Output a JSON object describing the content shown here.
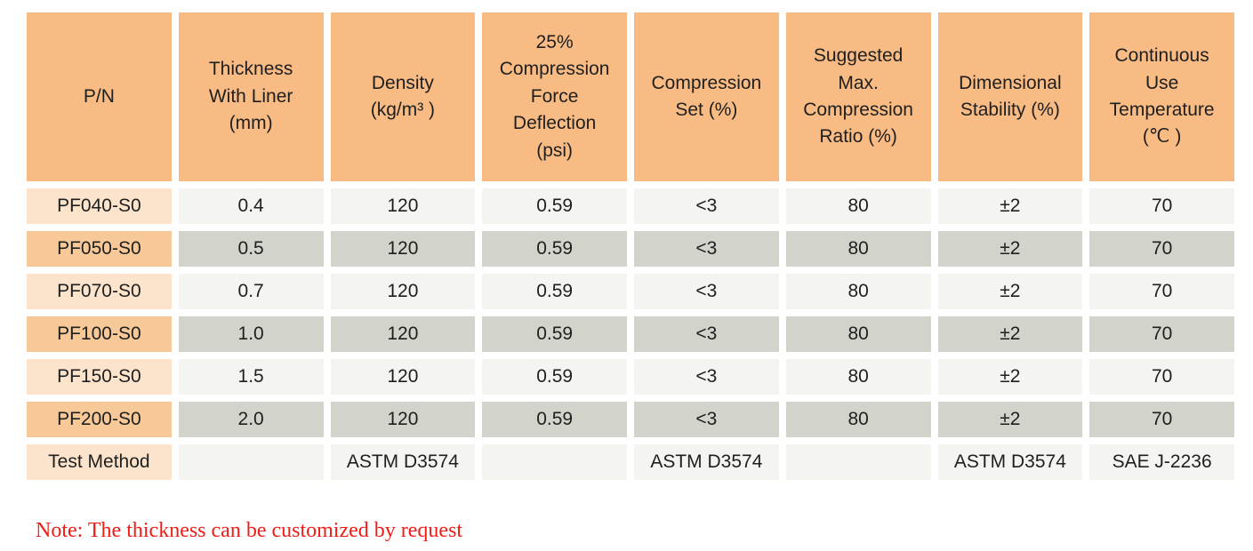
{
  "colors": {
    "header_bg": "#F8BB84",
    "pn_light": "#FCE4CC",
    "pn_dark": "#F8C998",
    "cell_light": "#F4F5F0",
    "cell_dark": "#D2D3CB",
    "note_red": "#EF1D16",
    "text": "#1F1F1F"
  },
  "table": {
    "columns": [
      {
        "label": "P/N"
      },
      {
        "label": "Thickness\nWith Liner\n(mm)"
      },
      {
        "label": "Density\n(kg/m³ )"
      },
      {
        "label": "25%\nCompression\nForce\nDeflection\n(psi)"
      },
      {
        "label": "Compression\nSet (%)"
      },
      {
        "label": "Suggested\nMax.\nCompression\nRatio (%)"
      },
      {
        "label": "Dimensional\nStability (%)"
      },
      {
        "label": "Continuous\nUse\nTemperature\n(℃ )"
      }
    ],
    "rows": [
      {
        "cells": [
          "PF040-S0",
          "0.4",
          "120",
          "0.59",
          "<3",
          "80",
          "±2",
          "70"
        ]
      },
      {
        "cells": [
          "PF050-S0",
          "0.5",
          "120",
          "0.59",
          "<3",
          "80",
          "±2",
          "70"
        ]
      },
      {
        "cells": [
          "PF070-S0",
          "0.7",
          "120",
          "0.59",
          "<3",
          "80",
          "±2",
          "70"
        ]
      },
      {
        "cells": [
          "PF100-S0",
          "1.0",
          "120",
          "0.59",
          "<3",
          "80",
          "±2",
          "70"
        ]
      },
      {
        "cells": [
          "PF150-S0",
          "1.5",
          "120",
          "0.59",
          "<3",
          "80",
          "±2",
          "70"
        ]
      },
      {
        "cells": [
          "PF200-S0",
          "2.0",
          "120",
          "0.59",
          "<3",
          "80",
          "±2",
          "70"
        ]
      },
      {
        "cells": [
          "Test Method",
          "",
          "ASTM D3574",
          "",
          "ASTM D3574",
          "",
          "ASTM D3574",
          "SAE J-2236"
        ]
      }
    ]
  },
  "note": {
    "text": "Note: The thickness can be customized by request"
  }
}
